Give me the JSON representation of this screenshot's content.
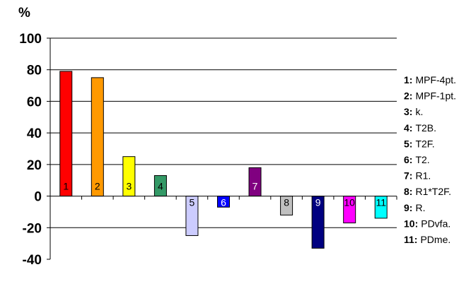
{
  "chart_data": {
    "type": "bar",
    "y_unit": "%",
    "ylim": [
      -40,
      100
    ],
    "yticks": [
      -40,
      -20,
      0,
      20,
      40,
      60,
      80,
      100
    ],
    "grid": "horizontal",
    "legend_position": "right",
    "categories": [
      "1",
      "2",
      "3",
      "4",
      "5",
      "6",
      "7",
      "8",
      "9",
      "10",
      "11"
    ],
    "values": [
      79,
      75,
      25,
      13,
      -25,
      -7,
      18,
      -12,
      -33,
      -17,
      -14
    ],
    "colors": [
      "#ff0000",
      "#ff9900",
      "#ffff00",
      "#339966",
      "#ccccff",
      "#0000ff",
      "#800080",
      "#c0c0c0",
      "#000080",
      "#ff00ff",
      "#00ffff"
    ],
    "label_colors": [
      "#000000",
      "#000000",
      "#000000",
      "#000000",
      "#000000",
      "#ffffff",
      "#ffffff",
      "#000000",
      "#ffffff",
      "#000000",
      "#000000"
    ],
    "legend": [
      {
        "num": "1:",
        "text": "MPF-4pt."
      },
      {
        "num": "2:",
        "text": "MPF-1pt."
      },
      {
        "num": "3:",
        "text": "k."
      },
      {
        "num": "4:",
        "text": "T2B."
      },
      {
        "num": "5:",
        "text": "T2F."
      },
      {
        "num": "6:",
        "text": "T2."
      },
      {
        "num": "7:",
        "text": "R1."
      },
      {
        "num": "8:",
        "text": "R1*T2F."
      },
      {
        "num": "9:",
        "text": "R."
      },
      {
        "num": "10:",
        "text": "PDvfa."
      },
      {
        "num": "11:",
        "text": "PDme."
      }
    ]
  }
}
